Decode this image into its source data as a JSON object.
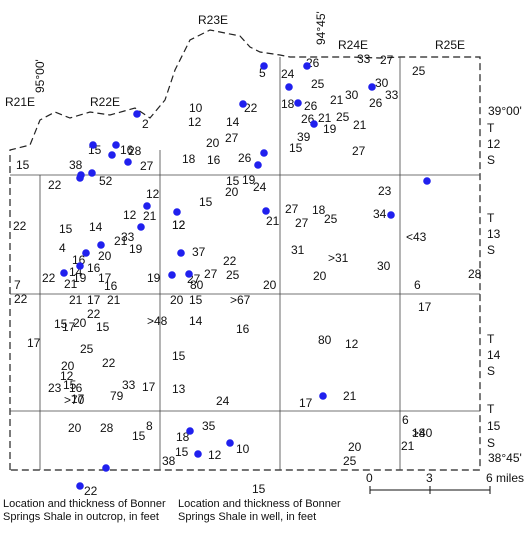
{
  "map": {
    "meridian_label": "95°00'",
    "meridian_label_east": "94°45'",
    "latitude_label_north": "39°00'",
    "latitude_label_south": "38°45'",
    "range_labels": [
      "R21E",
      "R22E",
      "R23E",
      "R24E",
      "R25E"
    ],
    "township_labels": [
      [
        "T",
        "12",
        "S"
      ],
      [
        "T",
        "13",
        "S"
      ],
      [
        "T",
        "14",
        "S"
      ],
      [
        "T",
        "15",
        "S"
      ]
    ]
  },
  "legend": {
    "outcrop_value": "22",
    "outcrop_label": "Location and thickness of Bonner Springs Shale in outcrop, in feet",
    "well_value": "15",
    "well_label": "Location and thickness of Bonner Springs Shale in well, in feet"
  },
  "scale_bar": {
    "ticks": [
      "0",
      "3",
      "6 miles"
    ]
  },
  "thickness_values": [
    "33",
    "26",
    "27",
    "25",
    "5",
    "24",
    "30",
    "25",
    "33",
    "26",
    "18",
    "26",
    "30",
    "21",
    "39",
    "15",
    "22",
    "12",
    "14",
    "2",
    "21",
    "26",
    "25",
    "19",
    "21",
    "27",
    "20",
    "10",
    "15",
    "16",
    "28",
    "15",
    "16",
    "18",
    "26",
    "27",
    "27",
    "38",
    "52",
    "15",
    "19",
    "24",
    "22",
    "20",
    "23",
    "12",
    "15",
    "12",
    "21",
    "27",
    "18",
    "12",
    "33",
    "21",
    "27",
    "25",
    "34",
    "15",
    "14",
    "21",
    "22",
    "12",
    "<43",
    "4",
    "19",
    "37",
    "31",
    ">31",
    "16",
    "20",
    "22",
    "30",
    "14",
    "17",
    "16",
    "27",
    "25",
    "28",
    "7",
    "22",
    "19",
    "21",
    "16",
    "20",
    "19",
    "27",
    "20",
    "80",
    "6",
    "22",
    "21",
    "17",
    "21",
    "20",
    "15",
    ">67",
    "17",
    "17",
    "15",
    "22",
    "14",
    "16",
    "17",
    "20",
    "15",
    ">48",
    "80",
    "12",
    "22",
    "25",
    "15",
    "20",
    "12",
    "15",
    "16",
    "17",
    "33",
    "17",
    "23",
    "13",
    "79",
    ">70",
    "24",
    "17",
    "21",
    "6",
    "20",
    "28",
    ">40",
    "15",
    "8",
    "18",
    "18",
    "35",
    "10",
    "21",
    "15",
    "20",
    "12",
    "25",
    "38"
  ]
}
